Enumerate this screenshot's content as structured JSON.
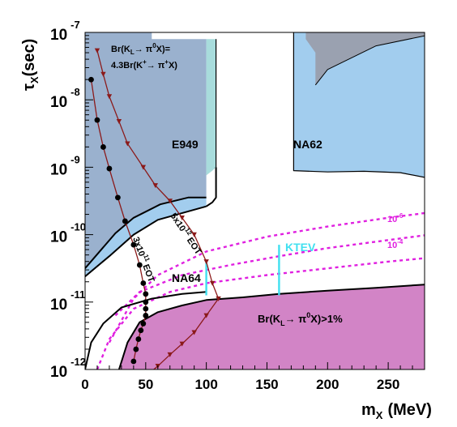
{
  "chart_data": {
    "type": "area",
    "xlabel": "m",
    "xlabel_sub": "X",
    "xlabel_unit": "(MeV)",
    "ylabel": "τ",
    "ylabel_sub": "X",
    "ylabel_unit": "(sec)",
    "xlim": [
      0,
      280
    ],
    "ylim_log10": [
      -12,
      -7
    ],
    "log_y": true,
    "x_ticks": [
      0,
      50,
      100,
      150,
      200,
      250
    ],
    "x_tick_labels": [
      "0",
      "50",
      "100",
      "150",
      "200",
      "250"
    ],
    "y_ticks": [
      {
        "value": -12,
        "base": "10",
        "exp": "-12"
      },
      {
        "value": -11,
        "base": "10",
        "exp": "-11"
      },
      {
        "value": -10,
        "base": "10",
        "exp": "-10"
      },
      {
        "value": -9,
        "base": "10",
        "exp": "-9"
      },
      {
        "value": -8,
        "base": "10",
        "exp": "-8"
      },
      {
        "value": -7,
        "base": "10",
        "exp": "-7"
      }
    ],
    "colors": {
      "e949": "#9ab1ce",
      "na62": "#a2cdee",
      "teal": "#a8dcdc",
      "light_blue": "#a2cdee",
      "dark_gray": "#9aa1b0",
      "kl": "#d284c6",
      "magenta_dashed": "#e020e0",
      "ktev": "#40e0f0",
      "dark_red": "#8b1a1a",
      "black": "#000000"
    },
    "regions": {
      "e949": {
        "label": "E949",
        "points": [
          [
            0,
            -7
          ],
          [
            55,
            -7
          ],
          [
            55,
            -7.1
          ],
          [
            100,
            -7.1
          ],
          [
            100,
            -9.45
          ],
          [
            85,
            -9.45
          ],
          [
            62,
            -9.55
          ],
          [
            40,
            -9.75
          ],
          [
            25,
            -9.98
          ],
          [
            0,
            -10.5
          ]
        ]
      },
      "teal_strip": {
        "points": [
          [
            100,
            -7.1
          ],
          [
            108,
            -7.1
          ],
          [
            108,
            -9.0
          ],
          [
            105,
            -9.05
          ],
          [
            100,
            -9.12
          ]
        ]
      },
      "na62_left": {
        "points": [
          [
            0,
            -10.5
          ],
          [
            0,
            -10.62
          ],
          [
            20,
            -10.32
          ],
          [
            40,
            -10.0
          ],
          [
            60,
            -9.78
          ],
          [
            100,
            -9.58
          ],
          [
            100,
            -9.45
          ],
          [
            85,
            -9.45
          ],
          [
            62,
            -9.55
          ],
          [
            40,
            -9.75
          ],
          [
            25,
            -9.98
          ]
        ]
      },
      "na62": {
        "label": "NA62",
        "points": [
          [
            172,
            -7
          ],
          [
            280,
            -7
          ],
          [
            280,
            -9.15
          ],
          [
            260,
            -9.08
          ],
          [
            230,
            -9.06
          ],
          [
            200,
            -9.07
          ],
          [
            172,
            -9.05
          ]
        ]
      },
      "dark_wedge": {
        "points": [
          [
            182,
            -7
          ],
          [
            280,
            -7
          ],
          [
            280,
            -7.05
          ],
          [
            240,
            -7.2
          ],
          [
            200,
            -7.55
          ],
          [
            190,
            -7.78
          ],
          [
            190,
            -7.3
          ],
          [
            182,
            -7.1
          ]
        ]
      },
      "kl": {
        "label_main": "Br(K",
        "label_sub_l": "L",
        "label_arrow": "→ π",
        "label_sup0": "0",
        "label_end": "X)>1%",
        "points": [
          [
            28,
            -12
          ],
          [
            35,
            -11.6
          ],
          [
            45,
            -11.3
          ],
          [
            60,
            -11.15
          ],
          [
            80,
            -11.05
          ],
          [
            100,
            -10.97
          ],
          [
            130,
            -10.93
          ],
          [
            160,
            -10.88
          ],
          [
            200,
            -10.83
          ],
          [
            240,
            -10.79
          ],
          [
            280,
            -10.74
          ],
          [
            280,
            -12
          ]
        ]
      }
    },
    "curves": {
      "e949_bound": [
        [
          0,
          -10.5
        ],
        [
          25,
          -9.98
        ],
        [
          40,
          -9.75
        ],
        [
          62,
          -9.55
        ],
        [
          85,
          -9.45
        ],
        [
          100,
          -9.45
        ]
      ],
      "na62_left_bound": [
        [
          0,
          -10.62
        ],
        [
          20,
          -10.32
        ],
        [
          40,
          -10.0
        ],
        [
          60,
          -9.78
        ],
        [
          100,
          -9.58
        ]
      ],
      "na62_inner": [
        [
          108,
          -9.0
        ],
        [
          108,
          -9.45
        ],
        [
          105,
          -9.52
        ],
        [
          100,
          -9.58
        ]
      ],
      "na62_right": [
        [
          172,
          -7
        ],
        [
          172,
          -9.05
        ],
        [
          200,
          -9.07
        ],
        [
          230,
          -9.06
        ],
        [
          260,
          -9.08
        ],
        [
          280,
          -9.15
        ]
      ],
      "gap_left": [
        [
          108,
          -7.1
        ],
        [
          108,
          -9.0
        ]
      ],
      "na64_bound": [
        [
          0,
          -12
        ],
        [
          5,
          -11.6
        ],
        [
          15,
          -11.32
        ],
        [
          30,
          -11.08
        ],
        [
          55,
          -10.95
        ],
        [
          80,
          -10.88
        ],
        [
          100,
          -10.85
        ]
      ],
      "kl_bound": [
        [
          28,
          -12
        ],
        [
          35,
          -11.6
        ],
        [
          45,
          -11.3
        ],
        [
          60,
          -11.15
        ],
        [
          80,
          -11.05
        ],
        [
          100,
          -10.97
        ],
        [
          130,
          -10.93
        ],
        [
          160,
          -10.88
        ],
        [
          200,
          -10.83
        ],
        [
          240,
          -10.79
        ],
        [
          280,
          -10.74
        ]
      ],
      "wedge_edge": [
        [
          190,
          -7.78
        ],
        [
          200,
          -7.55
        ],
        [
          240,
          -7.2
        ],
        [
          280,
          -7.05
        ]
      ]
    },
    "dashed_lines": [
      {
        "label": "10",
        "label_exp": "-6",
        "points": [
          [
            20,
            -11.6
          ],
          [
            40,
            -10.95
          ],
          [
            60,
            -10.6
          ],
          [
            100,
            -10.25
          ],
          [
            150,
            -10.03
          ],
          [
            200,
            -9.88
          ],
          [
            250,
            -9.75
          ],
          [
            280,
            -9.68
          ]
        ]
      },
      {
        "label": "10",
        "label_exp": "-4",
        "points": [
          [
            25,
            -11.2
          ],
          [
            45,
            -10.85
          ],
          [
            80,
            -10.6
          ],
          [
            120,
            -10.45
          ],
          [
            160,
            -10.32
          ],
          [
            200,
            -10.2
          ],
          [
            250,
            -10.08
          ],
          [
            280,
            -10.01
          ]
        ]
      },
      {
        "label": "",
        "label_exp": "",
        "points": [
          [
            10,
            -12
          ],
          [
            20,
            -11.55
          ],
          [
            40,
            -11.1
          ],
          [
            70,
            -10.85
          ],
          [
            100,
            -10.72
          ],
          [
            150,
            -10.6
          ],
          [
            200,
            -10.5
          ],
          [
            250,
            -10.4
          ],
          [
            280,
            -10.35
          ]
        ]
      }
    ],
    "ktev": {
      "label": "KTEV",
      "segments": [
        [
          [
            100,
            -10.4
          ],
          [
            100,
            -10.9
          ]
        ],
        [
          [
            160,
            -10.15
          ],
          [
            160,
            -10.9
          ]
        ]
      ]
    },
    "triangle_series": {
      "label_coeff": "5x10",
      "label_exp": "12",
      "label_unit": "EOT",
      "points": [
        [
          10,
          -7.27
        ],
        [
          15,
          -7.62
        ],
        [
          20,
          -7.95
        ],
        [
          28,
          -8.32
        ],
        [
          35,
          -8.65
        ],
        [
          48,
          -9.0
        ],
        [
          58,
          -9.27
        ],
        [
          70,
          -9.5
        ],
        [
          80,
          -9.75
        ],
        [
          90,
          -10.0
        ],
        [
          100,
          -10.4
        ],
        [
          105,
          -10.72
        ],
        [
          110,
          -10.95
        ],
        [
          100,
          -11.2
        ],
        [
          90,
          -11.45
        ],
        [
          80,
          -11.62
        ],
        [
          70,
          -11.78
        ],
        [
          60,
          -11.95
        ],
        [
          50,
          -12.1
        ],
        [
          30,
          -12.2
        ]
      ]
    },
    "circle_series": {
      "label_coeff": "3x10",
      "label_exp": "11",
      "label_unit": "EOT",
      "points": [
        [
          5,
          -7.7
        ],
        [
          10,
          -8.3
        ],
        [
          15,
          -8.7
        ],
        [
          20,
          -9.02
        ],
        [
          27,
          -9.45
        ],
        [
          33,
          -9.8
        ],
        [
          40,
          -10.15
        ],
        [
          45,
          -10.45
        ],
        [
          48,
          -10.72
        ],
        [
          50,
          -10.88
        ],
        [
          50,
          -11.0
        ],
        [
          50,
          -11.1
        ],
        [
          50,
          -11.2
        ],
        [
          48,
          -11.32
        ],
        [
          46,
          -11.42
        ],
        [
          44,
          -11.55
        ],
        [
          42,
          -11.7
        ],
        [
          40,
          -11.88
        ]
      ]
    },
    "annotations": {
      "br_line1": "Br(K",
      "br_line1_sub": "L",
      "br_line1_arrow": "→ π",
      "br_line1_sup": "0",
      "br_line1_end": "X)=",
      "br_line2": "4.3Br(K",
      "br_line2_sup": "+",
      "br_line2_arrow": "→ π",
      "br_line2_sup2": "+",
      "br_line2_end": "X)",
      "na64": "NA64"
    }
  }
}
